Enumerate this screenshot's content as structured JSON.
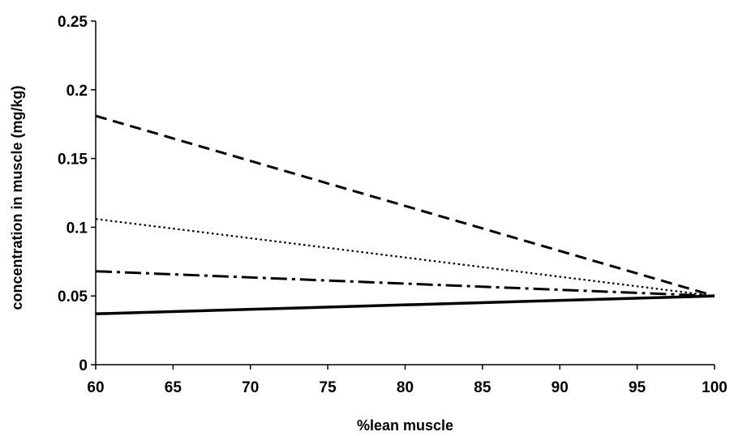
{
  "chart_data": {
    "type": "line",
    "title": "",
    "xlabel": "%lean muscle",
    "ylabel": "concentration in muscle (mg/kg)",
    "xlim": [
      60,
      100
    ],
    "ylim": [
      0,
      0.25
    ],
    "x_ticks": [
      60,
      65,
      70,
      75,
      80,
      85,
      90,
      95,
      100
    ],
    "y_ticks": [
      0,
      0.05,
      0.1,
      0.15,
      0.2,
      0.25
    ],
    "x_tick_labels": [
      "60",
      "65",
      "70",
      "75",
      "80",
      "85",
      "90",
      "95",
      "100"
    ],
    "y_tick_labels": [
      "0",
      "0.05",
      "0.1",
      "0.15",
      "0.2",
      "0.25"
    ],
    "grid": false,
    "legend": "none",
    "series": [
      {
        "style": "dashed",
        "color": "#000000",
        "x": [
          60,
          100
        ],
        "y": [
          0.181,
          0.05
        ]
      },
      {
        "style": "dotted",
        "color": "#000000",
        "x": [
          60,
          100
        ],
        "y": [
          0.106,
          0.05
        ]
      },
      {
        "style": "dash-dot",
        "color": "#000000",
        "x": [
          60,
          100
        ],
        "y": [
          0.068,
          0.05
        ]
      },
      {
        "style": "solid",
        "color": "#000000",
        "x": [
          60,
          100
        ],
        "y": [
          0.037,
          0.05
        ]
      }
    ]
  }
}
